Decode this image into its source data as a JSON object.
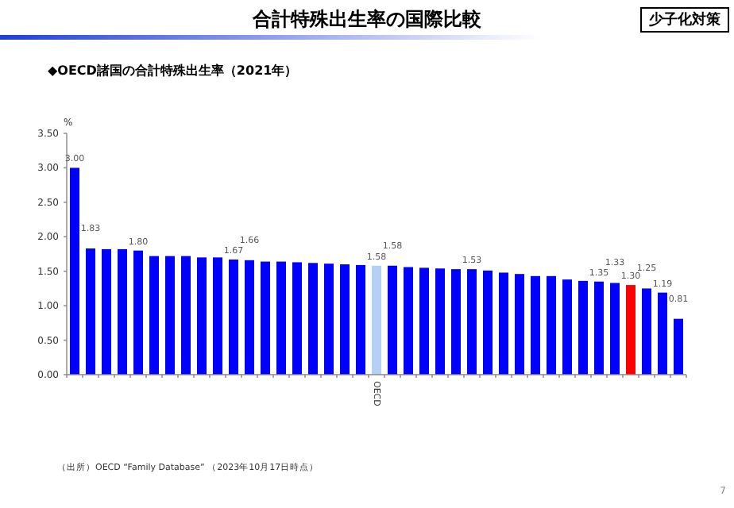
{
  "chart_data": {
    "type": "bar",
    "title": "合計特殊出生率の国際比較",
    "subtitle": "◆OECD諸国の合計特殊出生率（2021年）",
    "ylabel": "%",
    "categories": [
      null,
      null,
      null,
      null,
      null,
      null,
      null,
      null,
      null,
      null,
      null,
      null,
      null,
      null,
      null,
      null,
      null,
      null,
      null,
      "OECD",
      null,
      null,
      null,
      null,
      null,
      null,
      null,
      null,
      null,
      null,
      null,
      null,
      null,
      null,
      null,
      null,
      null,
      null,
      null
    ],
    "values": [
      3.0,
      1.83,
      1.82,
      1.82,
      1.8,
      1.72,
      1.72,
      1.72,
      1.7,
      1.7,
      1.67,
      1.66,
      1.64,
      1.64,
      1.63,
      1.62,
      1.61,
      1.6,
      1.59,
      1.58,
      1.58,
      1.56,
      1.55,
      1.54,
      1.53,
      1.53,
      1.51,
      1.48,
      1.46,
      1.43,
      1.43,
      1.38,
      1.36,
      1.35,
      1.33,
      1.3,
      1.25,
      1.19,
      0.81
    ],
    "value_labels": [
      "3.00",
      "1.83",
      null,
      null,
      "1.80",
      null,
      null,
      null,
      null,
      null,
      "1.67",
      "1.66",
      null,
      null,
      null,
      null,
      null,
      null,
      null,
      "1.58",
      "1.58",
      null,
      null,
      null,
      null,
      "1.53",
      null,
      null,
      null,
      null,
      null,
      null,
      null,
      "1.35",
      "1.33",
      "1.30",
      "1.25",
      "1.19",
      "0.81"
    ],
    "colors": [
      "#0000ff",
      "#0000ff",
      "#0000ff",
      "#0000ff",
      "#0000ff",
      "#0000ff",
      "#0000ff",
      "#0000ff",
      "#0000ff",
      "#0000ff",
      "#0000ff",
      "#0000ff",
      "#0000ff",
      "#0000ff",
      "#0000ff",
      "#0000ff",
      "#0000ff",
      "#0000ff",
      "#0000ff",
      "#b4d0f4",
      "#0000ff",
      "#0000ff",
      "#0000ff",
      "#0000ff",
      "#0000ff",
      "#0000ff",
      "#0000ff",
      "#0000ff",
      "#0000ff",
      "#0000ff",
      "#0000ff",
      "#0000ff",
      "#0000ff",
      "#0000ff",
      "#0000ff",
      "#ff0000",
      "#0000ff",
      "#0000ff",
      "#0000ff"
    ],
    "ylim": [
      0,
      3.5
    ],
    "yticks": [
      {
        "value": 0,
        "label": "0.00"
      },
      {
        "value": 0.5,
        "label": "0.50"
      },
      {
        "value": 1,
        "label": "1.00"
      },
      {
        "value": 1.5,
        "label": "1.50"
      },
      {
        "value": 2,
        "label": "2.00"
      },
      {
        "value": 2.5,
        "label": "2.50"
      },
      {
        "value": 3,
        "label": "3.00"
      },
      {
        "value": 3.5,
        "label": "3.50"
      }
    ],
    "grid": false,
    "annotations": [
      "少子化対策",
      "（出所）OECD “Family Database” （2023年10月17日時点）",
      "7"
    ]
  }
}
